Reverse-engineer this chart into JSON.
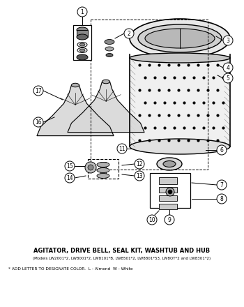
{
  "title": "AGITATOR, DRIVE BELL, SEAL KIT, WASHTUB AND HUB",
  "subtitle": "(Models LW2001*2, LW8001*2, LW8101*B, LW8501*2, LW8801*53, LW8OT*2 and LW8301*2)",
  "footnote": "* ADD LETTER TO DESIGNATE COLOR.  L - Almond  W - White",
  "bg_color": "#ffffff",
  "text_color": "#000000"
}
